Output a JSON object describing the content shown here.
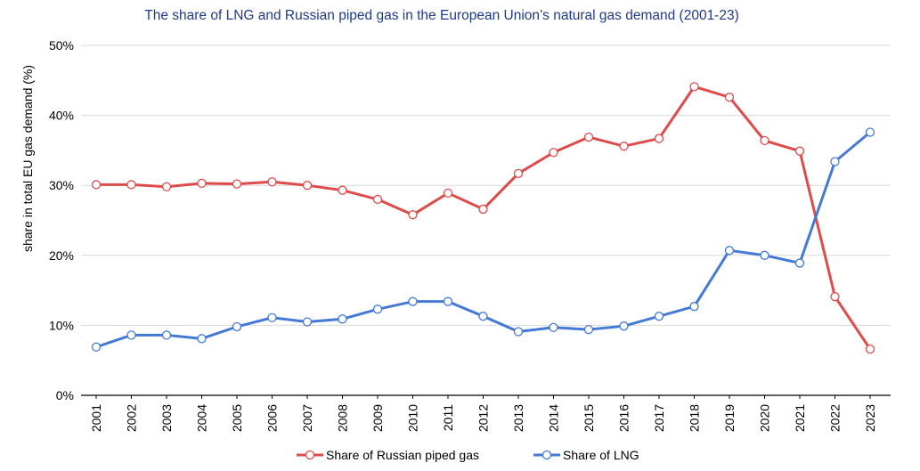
{
  "chart_data": {
    "type": "line",
    "title": "The share of LNG and Russian piped gas in the European Union’s natural gas demand (2001-23)",
    "ylabel": "share in total EU gas demand (%)",
    "xlabel": "",
    "ylim": [
      0,
      50
    ],
    "yticks": [
      "0%",
      "10%",
      "20%",
      "30%",
      "40%",
      "50%"
    ],
    "categories": [
      "2001",
      "2002",
      "2003",
      "2004",
      "2005",
      "2006",
      "2007",
      "2008",
      "2009",
      "2010",
      "2011",
      "2012",
      "2013",
      "2014",
      "2015",
      "2016",
      "2017",
      "2018",
      "2019",
      "2020",
      "2021",
      "2022",
      "2023"
    ],
    "grid": true,
    "legend_position": "bottom",
    "series": [
      {
        "name": "Share of Russian piped gas",
        "color": "#de4b4b",
        "values": [
          30.1,
          30.1,
          29.8,
          30.3,
          30.2,
          30.5,
          30.0,
          29.3,
          28.0,
          25.8,
          28.9,
          26.6,
          31.7,
          34.7,
          36.9,
          35.6,
          36.7,
          44.1,
          42.6,
          36.4,
          34.9,
          14.1,
          6.6
        ]
      },
      {
        "name": "Share of LNG",
        "color": "#4479d4",
        "values": [
          6.9,
          8.6,
          8.6,
          8.1,
          9.8,
          11.1,
          10.5,
          10.9,
          12.3,
          13.4,
          13.4,
          11.3,
          9.1,
          9.7,
          9.4,
          9.9,
          11.3,
          12.7,
          20.7,
          20.0,
          18.9,
          33.4,
          37.6
        ]
      }
    ],
    "title_color": "#1f3a8a",
    "grid_color": "#d9d9d9",
    "axis_color": "#000000"
  }
}
